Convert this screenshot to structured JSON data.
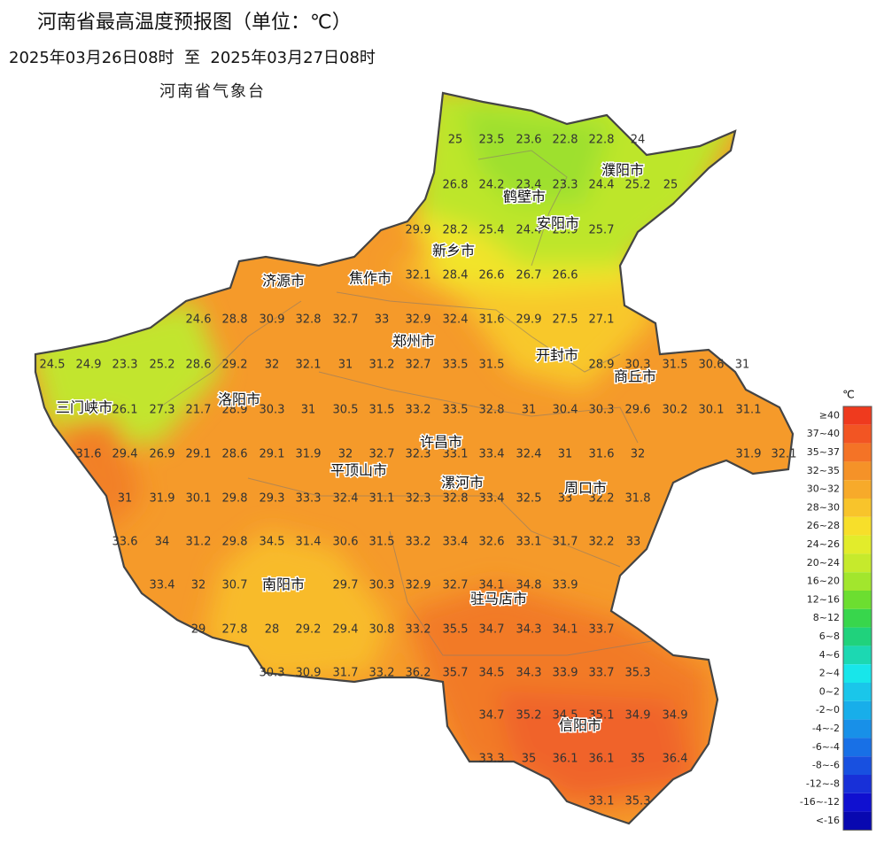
{
  "header": {
    "title": "河南省最高温度预报图（单位：℃）",
    "period": "2025年03月26日08时  至  2025年03月27日08时",
    "issuer": "河南省气象台"
  },
  "cities": [
    "濮阳市",
    "鹤壁市",
    "安阳市",
    "新乡市",
    "济源市",
    "焦作市",
    "郑州市",
    "开封市",
    "商丘市",
    "三门峡市",
    "洛阳市",
    "许昌市",
    "平顶山市",
    "漯河市",
    "周口市",
    "南阳市",
    "驻马店市",
    "信阳市"
  ],
  "stations": [
    [
      25,
      23.5,
      23.6,
      22.8,
      22.8,
      24
    ],
    [
      26.8,
      24.2,
      23.4,
      23.3,
      24.4,
      25.2,
      25
    ],
    [
      29.9,
      28.2,
      25.4,
      24.4,
      23.9,
      25.7
    ],
    [
      32.1,
      28.4,
      26.6,
      26.7,
      26.6
    ],
    [
      24.6,
      28.8,
      30.9,
      32.8,
      32.7,
      33,
      32.9,
      32.4,
      31.6,
      29.9,
      27.5,
      27.1
    ],
    [
      24.5,
      24.9,
      23.3,
      25.2,
      28.6,
      29.2,
      32,
      32.1,
      31,
      31.2,
      32.7,
      33.5,
      31.5,
      28.9,
      30.3,
      31.5,
      30.6,
      31
    ],
    [
      26.1,
      27.3,
      21.7,
      28.9,
      30.3,
      31,
      30.5,
      31.5,
      33.2,
      33.5,
      32.8,
      31,
      30.4,
      30.3,
      29.6,
      30.2,
      30.1,
      31.1
    ],
    [
      31.6,
      29.4,
      26.9,
      29.1,
      28.6,
      29.1,
      31.9,
      32,
      32.7,
      32.3,
      33.1,
      33.4,
      32.4,
      31,
      31.6,
      32,
      31.9,
      32.1
    ],
    [
      31,
      31.9,
      30.1,
      29.8,
      29.3,
      33.3,
      32.4,
      31.1,
      32.3,
      32.8,
      33.4,
      32.5,
      33,
      32.2,
      31.8
    ],
    [
      33.6,
      34,
      31.2,
      29.8,
      34.5,
      31.4,
      30.6,
      31.5,
      33.2,
      33.4,
      32.6,
      33.1,
      31.7,
      32.2,
      33
    ],
    [
      33.4,
      32,
      30.7,
      29.7,
      30.3,
      32.9,
      32.7,
      34.1,
      34.8,
      33.9
    ],
    [
      29,
      27.8,
      28,
      29.2,
      29.4,
      30.8,
      33.2,
      35.5,
      34.7,
      34.3,
      34.1,
      33.7
    ],
    [
      30.3,
      30.9,
      31.7,
      33.2,
      36.2,
      35.7,
      34.5,
      34.3,
      33.9,
      33.7,
      35.3
    ],
    [
      34.7,
      35.2,
      34.5,
      35.1,
      34.9,
      34.9
    ],
    [
      33.3,
      35,
      36.1,
      36.1,
      35,
      36.4
    ],
    [
      33.1,
      35.3
    ]
  ],
  "legend": {
    "title": "℃",
    "items": [
      {
        "label": "≥40",
        "color": "#ef3a1e"
      },
      {
        "label": "37~40",
        "color": "#f25523"
      },
      {
        "label": "35~37",
        "color": "#f47326"
      },
      {
        "label": "32~35",
        "color": "#f59228"
      },
      {
        "label": "30~32",
        "color": "#f7aa2a"
      },
      {
        "label": "28~30",
        "color": "#f8c42b"
      },
      {
        "label": "26~28",
        "color": "#f7df2a"
      },
      {
        "label": "24~26",
        "color": "#e2ec2b"
      },
      {
        "label": "20~24",
        "color": "#c6ea2c"
      },
      {
        "label": "16~20",
        "color": "#a2e62d"
      },
      {
        "label": "12~16",
        "color": "#6cde30"
      },
      {
        "label": "8~12",
        "color": "#38d64c"
      },
      {
        "label": "6~8",
        "color": "#20d27c"
      },
      {
        "label": "4~6",
        "color": "#1cd8b2"
      },
      {
        "label": "2~4",
        "color": "#18e6ea"
      },
      {
        "label": "0~2",
        "color": "#1ac6ea"
      },
      {
        "label": "-2~0",
        "color": "#18aeea"
      },
      {
        "label": "-4~-2",
        "color": "#1890e8"
      },
      {
        "label": "-6~-4",
        "color": "#1870e6"
      },
      {
        "label": "-8~-6",
        "color": "#1850e0"
      },
      {
        "label": "-12~-8",
        "color": "#1830d8"
      },
      {
        "label": "-16~-12",
        "color": "#1010d0"
      },
      {
        "label": "<-16",
        "color": "#0808b0"
      }
    ]
  }
}
